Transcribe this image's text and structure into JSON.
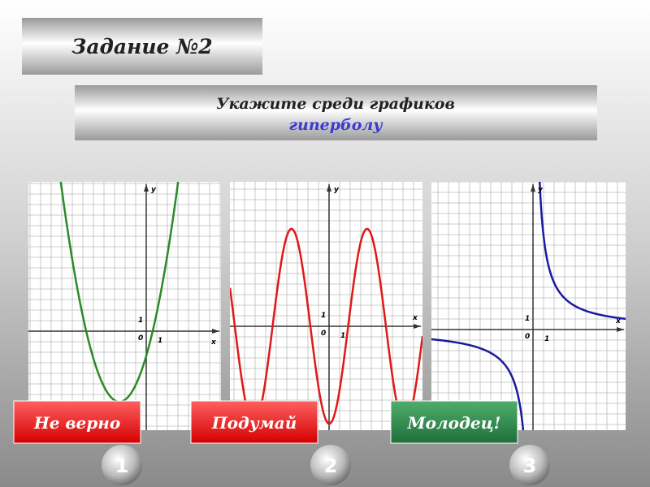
{
  "header": {
    "title": "Задание №2"
  },
  "task": {
    "line1": "Укажите среди графиков",
    "line2": "гиперболу"
  },
  "graphs": [
    {
      "y_label": "y",
      "x_label": "x",
      "origin": "0",
      "unit_x": "1",
      "unit_y": "1"
    },
    {
      "y_label": "y",
      "x_label": "x",
      "origin": "0",
      "unit_x": "1",
      "unit_y": "1"
    },
    {
      "y_label": "y",
      "x_label": "x",
      "origin": "0",
      "unit_x": "1",
      "unit_y": "1"
    }
  ],
  "options": [
    {
      "feedback": "Не верно",
      "number": "1"
    },
    {
      "feedback": "Подумай",
      "number": "2"
    },
    {
      "feedback": "Молодец!",
      "number": "3"
    }
  ]
}
